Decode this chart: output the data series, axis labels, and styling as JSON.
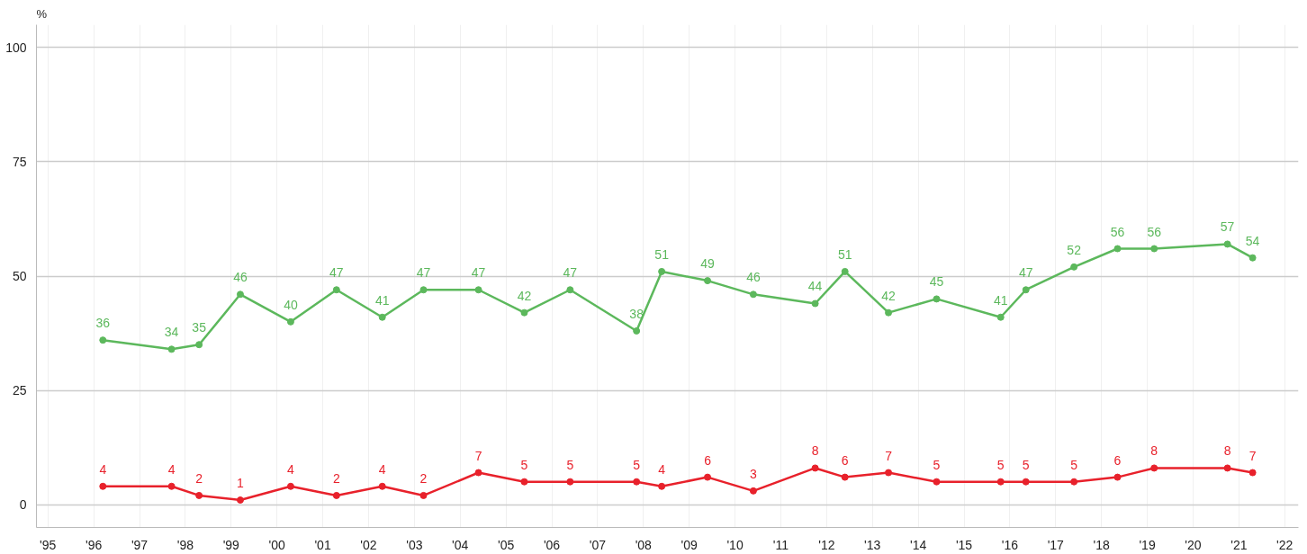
{
  "chart_data": {
    "type": "line",
    "ylabel": "%",
    "x": [
      1996.2,
      1997.7,
      1998.3,
      1999.2,
      2000.3,
      2001.3,
      2002.3,
      2003.2,
      2004.4,
      2005.4,
      2006.4,
      2007.85,
      2008.4,
      2009.4,
      2010.4,
      2011.75,
      2012.4,
      2013.35,
      2014.4,
      2015.8,
      2016.35,
      2017.4,
      2018.35,
      2019.15,
      2020.75,
      2021.3
    ],
    "series": [
      {
        "color": "#5cb85c",
        "values": [
          36,
          34,
          35,
          46,
          40,
          47,
          41,
          47,
          47,
          42,
          47,
          38,
          51,
          49,
          46,
          44,
          51,
          42,
          45,
          41,
          47,
          52,
          56,
          56,
          57,
          54
        ]
      },
      {
        "color": "#e8212b",
        "values": [
          4,
          4,
          2,
          1,
          4,
          2,
          4,
          2,
          7,
          5,
          5,
          5,
          4,
          6,
          3,
          8,
          6,
          7,
          5,
          5,
          5,
          5,
          6,
          8,
          8,
          7
        ]
      }
    ],
    "data_labels": true,
    "marker": "circle",
    "line_style": "solid",
    "grid": true,
    "xlim": [
      1994.75,
      2022.3
    ],
    "ylim": [
      -5,
      105
    ],
    "xticks": [
      {
        "value": 1995,
        "label": "'95"
      },
      {
        "value": 1996,
        "label": "'96"
      },
      {
        "value": 1997,
        "label": "'97"
      },
      {
        "value": 1998,
        "label": "'98"
      },
      {
        "value": 1999,
        "label": "'99"
      },
      {
        "value": 2000,
        "label": "'00"
      },
      {
        "value": 2001,
        "label": "'01"
      },
      {
        "value": 2002,
        "label": "'02"
      },
      {
        "value": 2003,
        "label": "'03"
      },
      {
        "value": 2004,
        "label": "'04"
      },
      {
        "value": 2005,
        "label": "'05"
      },
      {
        "value": 2006,
        "label": "'06"
      },
      {
        "value": 2007,
        "label": "'07"
      },
      {
        "value": 2008,
        "label": "'08"
      },
      {
        "value": 2009,
        "label": "'09"
      },
      {
        "value": 2010,
        "label": "'10"
      },
      {
        "value": 2011,
        "label": "'11"
      },
      {
        "value": 2012,
        "label": "'12"
      },
      {
        "value": 2013,
        "label": "'13"
      },
      {
        "value": 2014,
        "label": "'14"
      },
      {
        "value": 2015,
        "label": "'15"
      },
      {
        "value": 2016,
        "label": "'16"
      },
      {
        "value": 2017,
        "label": "'17"
      },
      {
        "value": 2018,
        "label": "'18"
      },
      {
        "value": 2019,
        "label": "'19"
      },
      {
        "value": 2020,
        "label": "'20"
      },
      {
        "value": 2021,
        "label": "'21"
      },
      {
        "value": 2022,
        "label": "'22"
      }
    ],
    "yticks": [
      0,
      25,
      50,
      75,
      100
    ]
  }
}
